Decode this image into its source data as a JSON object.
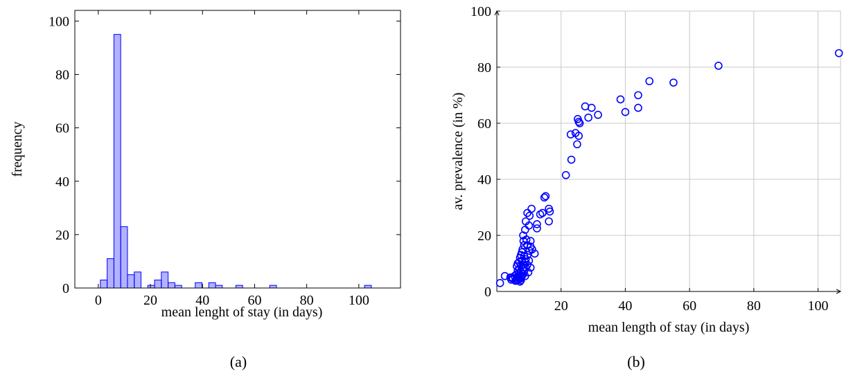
{
  "chart_data": [
    {
      "type": "bar",
      "panel_label": "(a)",
      "xlabel": "mean lenght of stay (in days)",
      "ylabel": "frequency",
      "xlim": [
        -9,
        116
      ],
      "ylim": [
        0,
        104
      ],
      "xticks": [
        0,
        20,
        40,
        60,
        80,
        100
      ],
      "yticks": [
        0,
        20,
        40,
        60,
        80,
        100
      ],
      "grid": false,
      "bar_color": "#0000ff",
      "bin_width": 2.6,
      "bins": [
        {
          "x0": 0.8,
          "count": 3
        },
        {
          "x0": 3.4,
          "count": 11
        },
        {
          "x0": 6.0,
          "count": 95
        },
        {
          "x0": 8.6,
          "count": 23
        },
        {
          "x0": 11.2,
          "count": 5
        },
        {
          "x0": 13.8,
          "count": 6
        },
        {
          "x0": 16.4,
          "count": 0
        },
        {
          "x0": 19.0,
          "count": 1
        },
        {
          "x0": 21.6,
          "count": 3
        },
        {
          "x0": 24.2,
          "count": 6
        },
        {
          "x0": 26.8,
          "count": 2
        },
        {
          "x0": 29.4,
          "count": 1
        },
        {
          "x0": 32.0,
          "count": 0
        },
        {
          "x0": 34.6,
          "count": 0
        },
        {
          "x0": 37.2,
          "count": 2
        },
        {
          "x0": 39.8,
          "count": 0
        },
        {
          "x0": 42.4,
          "count": 2
        },
        {
          "x0": 45.0,
          "count": 1
        },
        {
          "x0": 47.6,
          "count": 0
        },
        {
          "x0": 50.2,
          "count": 0
        },
        {
          "x0": 52.8,
          "count": 1
        },
        {
          "x0": 55.4,
          "count": 0
        },
        {
          "x0": 58.0,
          "count": 0
        },
        {
          "x0": 60.6,
          "count": 0
        },
        {
          "x0": 63.2,
          "count": 0
        },
        {
          "x0": 65.8,
          "count": 1
        },
        {
          "x0": 68.4,
          "count": 0
        },
        {
          "x0": 71.0,
          "count": 0
        },
        {
          "x0": 73.6,
          "count": 0
        },
        {
          "x0": 76.2,
          "count": 0
        },
        {
          "x0": 78.8,
          "count": 0
        },
        {
          "x0": 81.4,
          "count": 0
        },
        {
          "x0": 84.0,
          "count": 0
        },
        {
          "x0": 86.6,
          "count": 0
        },
        {
          "x0": 89.2,
          "count": 0
        },
        {
          "x0": 91.8,
          "count": 0
        },
        {
          "x0": 94.4,
          "count": 0
        },
        {
          "x0": 97.0,
          "count": 0
        },
        {
          "x0": 99.6,
          "count": 0
        },
        {
          "x0": 102.2,
          "count": 1
        }
      ]
    },
    {
      "type": "scatter",
      "panel_label": "(b)",
      "xlabel": "mean length of stay (in days)",
      "ylabel": "av. prevalence (in %)",
      "xlim": [
        0,
        107
      ],
      "ylim": [
        0,
        100
      ],
      "xticks": [
        20,
        40,
        60,
        80,
        100
      ],
      "yticks": [
        0,
        20,
        40,
        60,
        80,
        100
      ],
      "grid": true,
      "marker_color": "#0000ff",
      "points": [
        [
          106.5,
          85
        ],
        [
          69,
          80.5
        ],
        [
          55,
          74.5
        ],
        [
          47.5,
          75
        ],
        [
          44,
          70
        ],
        [
          44,
          65.5
        ],
        [
          40,
          64
        ],
        [
          38.5,
          68.5
        ],
        [
          31.5,
          63
        ],
        [
          29.5,
          65.5
        ],
        [
          28.5,
          62
        ],
        [
          27.5,
          66
        ],
        [
          25.8,
          60
        ],
        [
          25.5,
          60.5
        ],
        [
          25.2,
          61.5
        ],
        [
          25.5,
          55.5
        ],
        [
          25,
          52.5
        ],
        [
          24.5,
          56.5
        ],
        [
          23,
          56
        ],
        [
          23.2,
          47
        ],
        [
          21.5,
          41.5
        ],
        [
          16.2,
          29.5
        ],
        [
          16.5,
          28.5
        ],
        [
          15.2,
          34
        ],
        [
          14.8,
          33.5
        ],
        [
          14.2,
          28
        ],
        [
          13.5,
          27.5
        ],
        [
          16.2,
          25
        ],
        [
          12.5,
          22.5
        ],
        [
          12.5,
          24
        ],
        [
          11.8,
          13.5
        ],
        [
          10.8,
          29.5
        ],
        [
          10.2,
          27
        ],
        [
          9.5,
          28
        ],
        [
          9,
          25
        ],
        [
          10,
          23.5
        ],
        [
          8.8,
          22
        ],
        [
          8.2,
          20
        ],
        [
          9.2,
          18.5
        ],
        [
          8.3,
          18
        ],
        [
          10.5,
          18
        ],
        [
          9.5,
          16.5
        ],
        [
          10.5,
          16
        ],
        [
          10.2,
          14.5
        ],
        [
          11,
          15
        ],
        [
          8.5,
          16.5
        ],
        [
          8,
          15
        ],
        [
          7.8,
          14
        ],
        [
          9.5,
          13
        ],
        [
          7.5,
          13
        ],
        [
          8.5,
          12.5
        ],
        [
          7.2,
          12
        ],
        [
          9,
          11.5
        ],
        [
          10,
          11
        ],
        [
          7.8,
          11
        ],
        [
          8.8,
          10.5
        ],
        [
          7,
          10.5
        ],
        [
          6.5,
          10
        ],
        [
          9.5,
          9.5
        ],
        [
          8.2,
          9.5
        ],
        [
          7.5,
          9.2
        ],
        [
          6.2,
          9
        ],
        [
          9,
          8.5
        ],
        [
          10.5,
          8.5
        ],
        [
          8,
          8
        ],
        [
          7,
          8
        ],
        [
          6.5,
          7.5
        ],
        [
          8.5,
          7.2
        ],
        [
          7.5,
          7
        ],
        [
          9.8,
          6.8
        ],
        [
          6.8,
          6.5
        ],
        [
          8.2,
          6.2
        ],
        [
          7.2,
          6
        ],
        [
          6,
          6
        ],
        [
          8.8,
          5.5
        ],
        [
          7.8,
          5.5
        ],
        [
          6.5,
          5.2
        ],
        [
          5.5,
          5.5
        ],
        [
          7.5,
          5
        ],
        [
          6.8,
          4.8
        ],
        [
          4.8,
          5
        ],
        [
          7.2,
          4.5
        ],
        [
          6,
          4.2
        ],
        [
          5,
          4.5
        ],
        [
          7.5,
          4
        ],
        [
          6.5,
          4
        ],
        [
          4.2,
          5
        ],
        [
          5.8,
          3.8
        ],
        [
          4.5,
          4.2
        ],
        [
          2.5,
          5.5
        ],
        [
          7.2,
          3.5
        ],
        [
          1,
          3
        ]
      ]
    }
  ]
}
